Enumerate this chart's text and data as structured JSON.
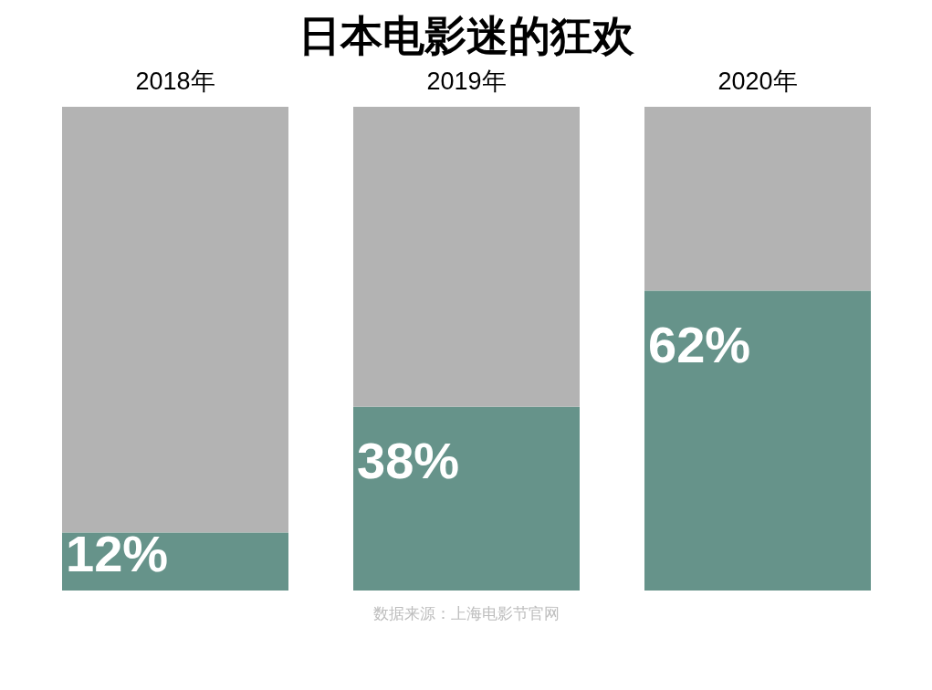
{
  "chart_data": {
    "type": "bar",
    "title": "日本电影迷的狂欢",
    "stacked": true,
    "categories": [
      "2018年",
      "2019年",
      "2020年"
    ],
    "series": [
      {
        "color": "#66938a",
        "values": [
          12,
          38,
          62
        ],
        "value_labels": [
          "12%",
          "38%",
          "62%"
        ]
      },
      {
        "color": "#b3b3b3",
        "values": [
          88,
          62,
          38
        ]
      }
    ],
    "annotations": [
      "数据来源：上海电影节官网"
    ]
  }
}
